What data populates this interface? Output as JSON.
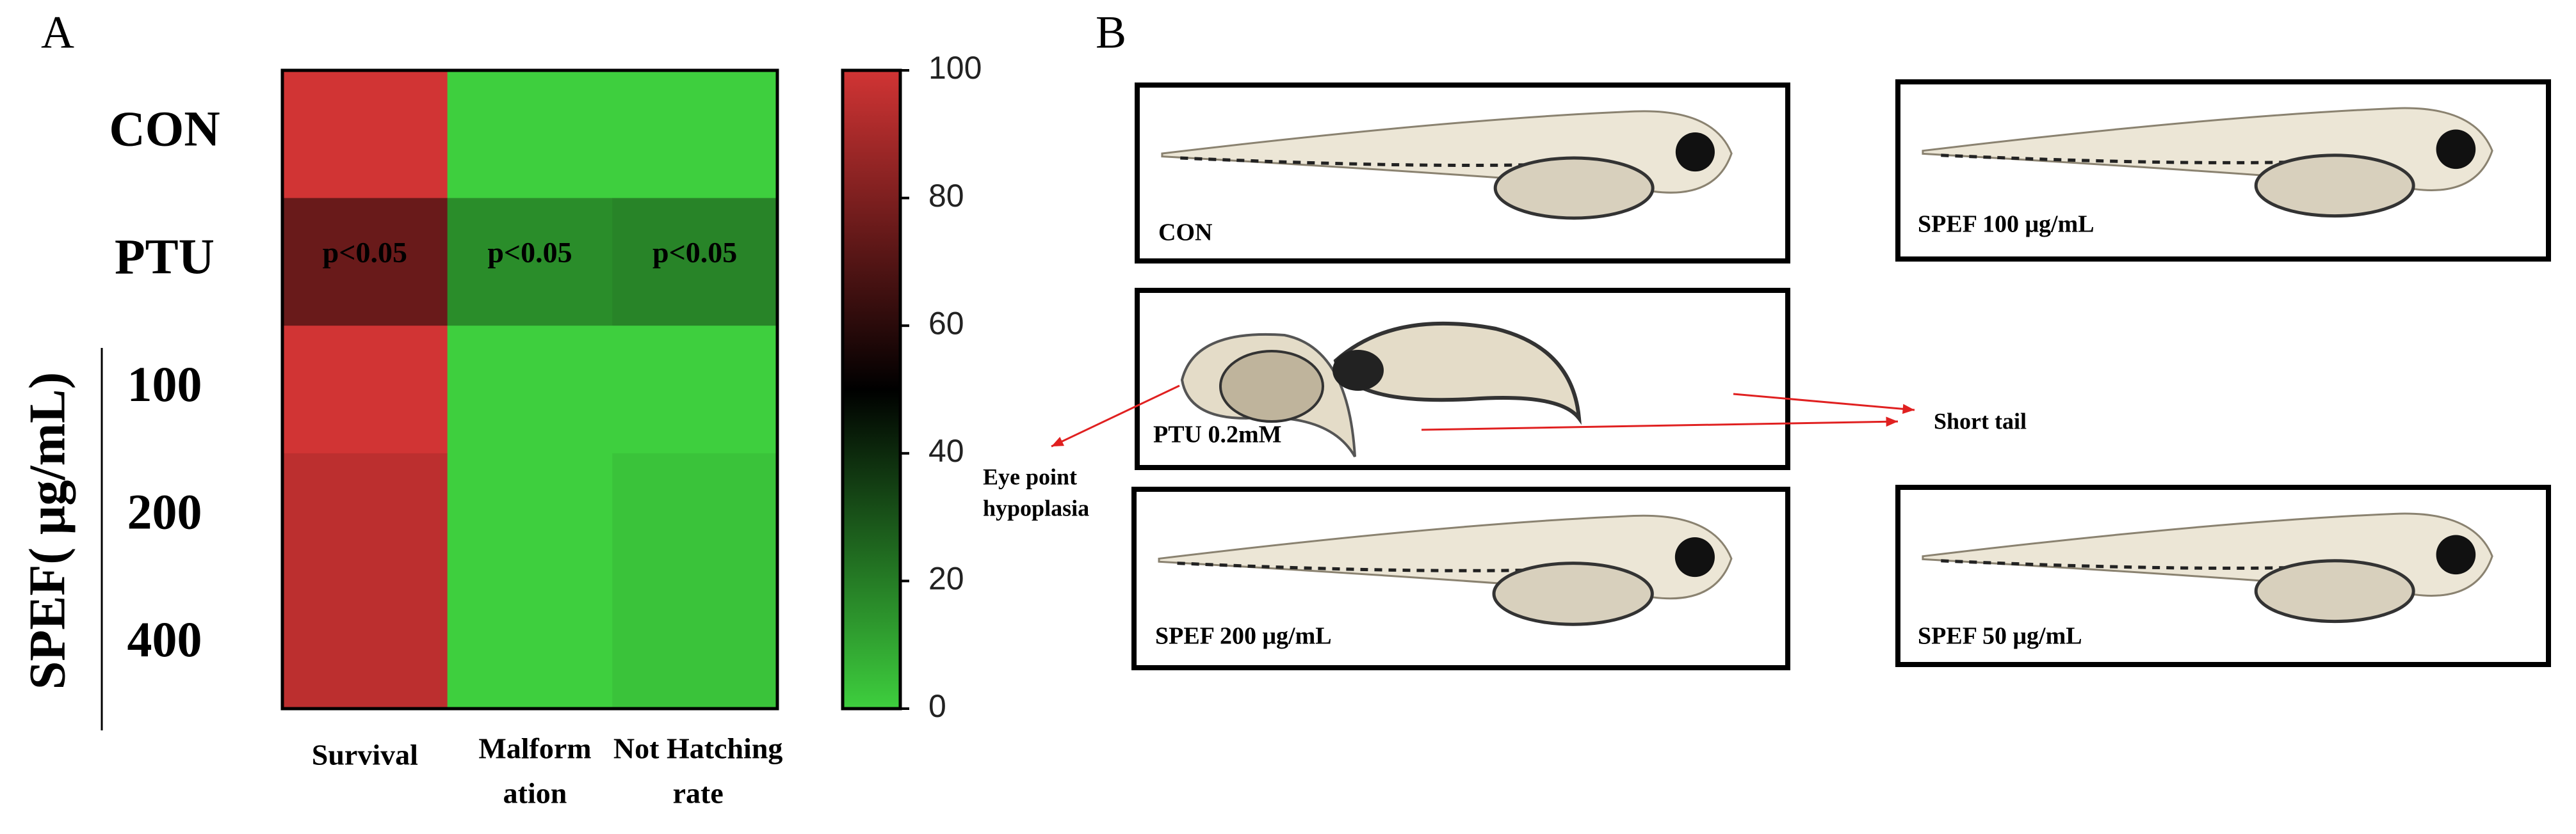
{
  "panel_a": {
    "label": "A"
  },
  "chart_data": {
    "type": "heatmap",
    "rows": [
      "CON",
      "PTU",
      "100",
      "200",
      "400"
    ],
    "row_group": "SPEF( μg/mL)",
    "categories": [
      [
        "Survival"
      ],
      [
        "Malform",
        "ation"
      ],
      [
        "Not Hatching",
        "rate"
      ]
    ],
    "values": [
      [
        100,
        0,
        0
      ],
      [
        75,
        16,
        18
      ],
      [
        100,
        0,
        0
      ],
      [
        95,
        0,
        3
      ],
      [
        95,
        0,
        3
      ]
    ],
    "annotations": [
      {
        "row": 1,
        "col": 0,
        "text": "p<0.05"
      },
      {
        "row": 1,
        "col": 1,
        "text": "p<0.05"
      },
      {
        "row": 1,
        "col": 2,
        "text": "p<0.05"
      }
    ],
    "colormap": [
      "#3ecf3e",
      "#000000",
      "#d13434"
    ],
    "zlim": [
      0,
      100
    ],
    "zticks": [
      0,
      20,
      40,
      60,
      80,
      100
    ]
  },
  "panel_b": {
    "label": "B",
    "images": [
      "CON",
      "SPEF 100 μg/mL",
      "PTU 0.2mM",
      "SPEF 200 μg/mL",
      "SPEF 50 μg/mL"
    ],
    "annotations": [
      [
        "Eye point",
        "hypoplasia"
      ],
      [
        "Short tail"
      ]
    ]
  }
}
